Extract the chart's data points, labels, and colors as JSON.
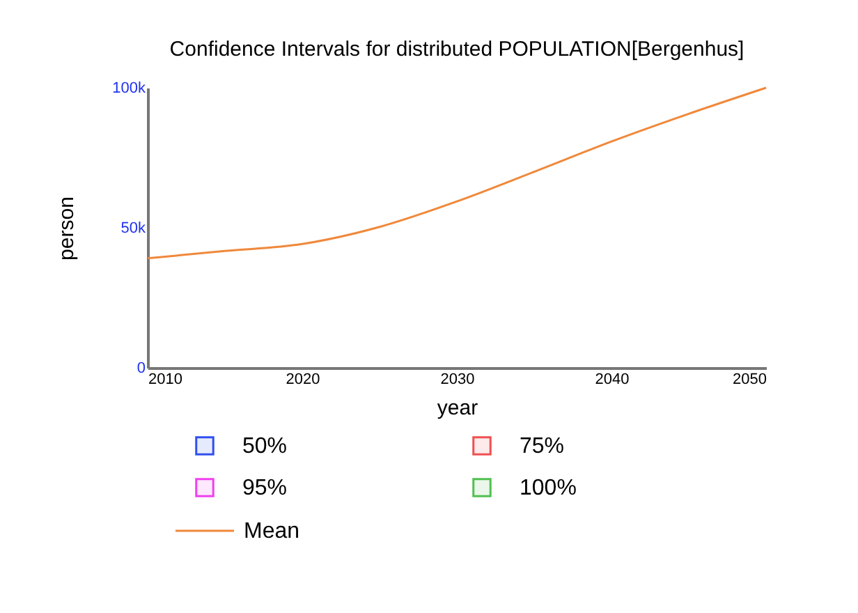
{
  "chart_data": {
    "type": "line",
    "title": "Confidence Intervals for distributed POPULATION[Bergenhus]",
    "xlabel": "year",
    "ylabel": "person",
    "x": [
      2010,
      2015,
      2020,
      2025,
      2030,
      2035,
      2040,
      2045,
      2050
    ],
    "series": [
      {
        "name": "50%",
        "type": "area",
        "color": "#3050f0",
        "values": [
          null,
          null,
          null,
          null,
          null,
          null,
          null,
          null,
          null
        ]
      },
      {
        "name": "75%",
        "type": "area",
        "color": "#f05050",
        "values": [
          null,
          null,
          null,
          null,
          null,
          null,
          null,
          null,
          null
        ]
      },
      {
        "name": "95%",
        "type": "area",
        "color": "#f040f0",
        "values": [
          null,
          null,
          null,
          null,
          null,
          null,
          null,
          null,
          null
        ]
      },
      {
        "name": "100%",
        "type": "area",
        "color": "#50c050",
        "values": [
          null,
          null,
          null,
          null,
          null,
          null,
          null,
          null,
          null
        ]
      },
      {
        "name": "Mean",
        "color": "#f0883a",
        "values": [
          39100,
          41700,
          44200,
          50300,
          59400,
          70000,
          80800,
          90700,
          100000
        ]
      }
    ],
    "xlim": [
      2010,
      2050
    ],
    "xticks": [
      2010,
      2020,
      2030,
      2040,
      2050
    ],
    "ylim": [
      0,
      100000
    ],
    "yticks": [
      0,
      {
        "value": 50000,
        "label": "50k"
      },
      {
        "value": 100000,
        "label": "100k"
      }
    ],
    "grid": false,
    "legend": "bottom"
  }
}
